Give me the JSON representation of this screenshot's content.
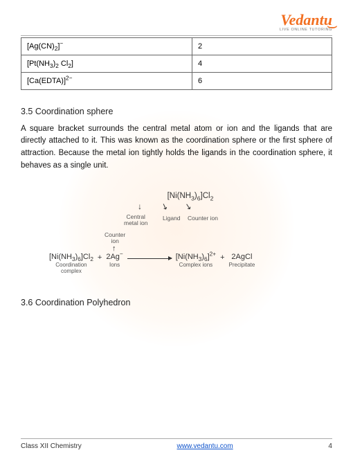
{
  "logo": {
    "text": "Vedantu",
    "tagline": "LIVE ONLINE TUTORING"
  },
  "table": {
    "rows": [
      {
        "formula_html": "[Ag(CN)<sub>2</sub>]<sup>−</sup>",
        "value": "2"
      },
      {
        "formula_html": "[Pt(NH<sub>3</sub>)<sub>2</sub> Cl<sub>2</sub>]",
        "value": "4"
      },
      {
        "formula_html": "[Ca(EDTA)]<sup>2−</sup>",
        "value": "6"
      }
    ]
  },
  "section1": {
    "title": "3.5 Coordination sphere",
    "body": "A square bracket surrounds the central metal atom or ion and the ligands that are directly attached to it. This was known as the coordination sphere or the first sphere of attraction. Because the metal ion tightly holds the ligands in the coordination sphere, it behaves as a single unit."
  },
  "diagram": {
    "top_formula_html": "[Ni(NH<sub>3</sub>)<sub>6</sub>]Cl<sub>2</sub>",
    "labels": {
      "central": "Central\nmetal ion",
      "ligand": "Ligand",
      "counterion": "Counter ion",
      "counter": "Counter\nion"
    },
    "equation": {
      "lhs1_html": "[Ni(NH<sub>3</sub>)<sub>6</sub>]Cl<sub>2</sub>",
      "lhs1_sub": "Coordination\ncomplex",
      "plus": "+",
      "lhs2_html": "2Ag<sup>−</sup>",
      "lhs2_sub": "Ions",
      "rhs1_html": "[Ni(NH<sub>3</sub>)<sub>6</sub>]<sup>2+</sup>",
      "rhs1_sub": "Complex ions",
      "rhs2_html": "2AgCl",
      "rhs2_sub": "Precipitate"
    }
  },
  "section2": {
    "title": "3.6 Coordination Polyhedron"
  },
  "footer": {
    "left": "Class XII Chemistry",
    "link_text": "www.vedantu.com",
    "link_href": "https://www.vedantu.com",
    "page": "4"
  },
  "colors": {
    "brand": "#f26f21",
    "link": "#1155cc",
    "border": "#666"
  }
}
